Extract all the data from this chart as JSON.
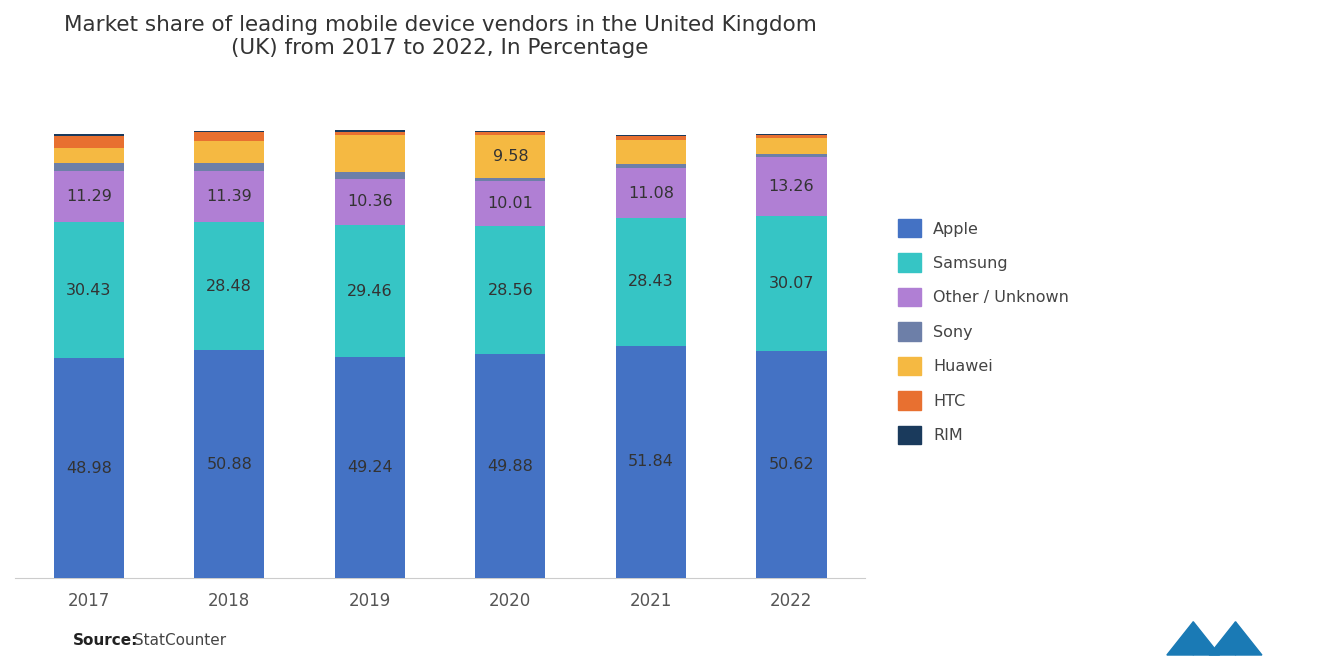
{
  "years": [
    "2017",
    "2018",
    "2019",
    "2020",
    "2021",
    "2022"
  ],
  "title": "Market share of leading mobile device vendors in the United Kingdom\n(UK) from 2017 to 2022, In Percentage",
  "source_bold": "Source:",
  "source_normal": " StatCounter",
  "segments": {
    "Apple": {
      "values": [
        48.98,
        50.88,
        49.24,
        49.88,
        51.84,
        50.62
      ],
      "color": "#4472C4"
    },
    "Samsung": {
      "values": [
        30.43,
        28.48,
        29.46,
        28.56,
        28.43,
        30.07
      ],
      "color": "#36C5C5"
    },
    "Other / Unknown": {
      "values": [
        11.29,
        11.39,
        10.36,
        10.01,
        11.08,
        13.26
      ],
      "color": "#B07FD4"
    },
    "Sony": {
      "values": [
        1.8,
        1.9,
        1.4,
        0.8,
        0.9,
        0.7
      ],
      "color": "#6D7FA8"
    },
    "Huawei": {
      "values": [
        3.5,
        4.85,
        8.3,
        9.58,
        5.5,
        3.5
      ],
      "color": "#F5B942"
    },
    "HTC": {
      "values": [
        2.5,
        1.9,
        0.8,
        0.6,
        0.9,
        0.7
      ],
      "color": "#E87030"
    },
    "RIM": {
      "values": [
        0.5,
        0.4,
        0.3,
        0.2,
        0.15,
        0.15
      ],
      "color": "#1A3A5C"
    }
  },
  "label_segments": {
    "Apple": [
      true,
      true,
      true,
      true,
      true,
      true
    ],
    "Samsung": [
      true,
      true,
      true,
      true,
      true,
      true
    ],
    "Other / Unknown": [
      true,
      true,
      true,
      true,
      true,
      true
    ],
    "Huawei": [
      false,
      false,
      false,
      true,
      false,
      false
    ]
  },
  "bar_width": 0.5,
  "ylim": [
    0,
    110
  ],
  "title_fontsize": 15.5,
  "tick_fontsize": 12,
  "label_fontsize": 11.5,
  "legend_fontsize": 11.5,
  "source_fontsize": 11,
  "background_color": "#FFFFFF",
  "label_color": "#333333"
}
